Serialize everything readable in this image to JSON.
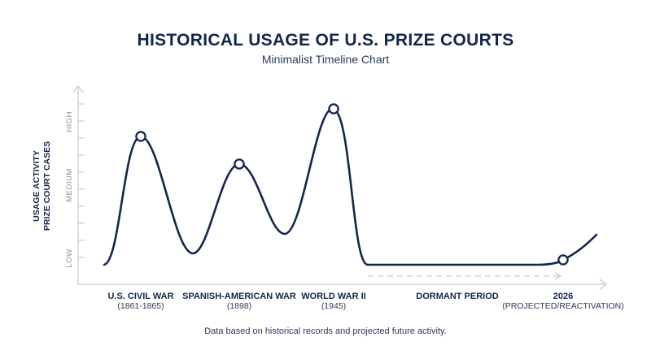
{
  "chart_data": {
    "type": "line",
    "title": "HISTORICAL USAGE OF U.S. PRIZE COURTS",
    "subtitle": "Minimalist Timeline Chart",
    "ylabel_line1": "USAGE ACTIVITY",
    "ylabel_line2": "PRIZE COURT CASES",
    "y_ticks": [
      "LOW",
      "MEDIUM",
      "HIGH"
    ],
    "events": [
      {
        "label": "U.S. CIVIL WAR",
        "sublabel": "(1861-1865)",
        "value": 0.78
      },
      {
        "label": "SPANISH-AMERICAN WAR",
        "sublabel": "(1898)",
        "value": 0.62
      },
      {
        "label": "WORLD WAR II",
        "sublabel": "(1945)",
        "value": 0.95
      },
      {
        "label": "DORMANT PERIOD",
        "sublabel": "",
        "value": 0.0
      },
      {
        "label": "2026",
        "sublabel": "(PROJECTED/REACTIVATION)",
        "value": 0.03
      }
    ],
    "footnote": "Data based on historical records and projected future activity.",
    "colors": {
      "line": "#13264b",
      "axis": "#c9ccd2",
      "dashed": "#c9ccd2"
    }
  }
}
